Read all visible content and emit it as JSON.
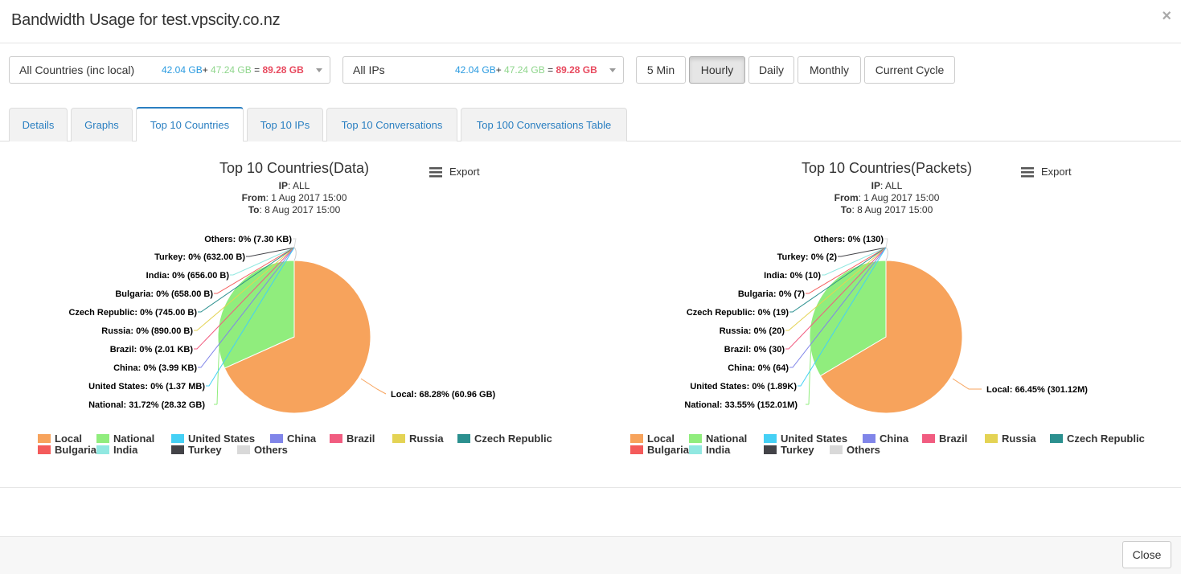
{
  "window": {
    "title": "Bandwidth Usage for test.vpscity.co.nz",
    "close_icon": "×"
  },
  "toolbar": {
    "country_select": {
      "label": "All Countries (inc local)",
      "a": "42.04 GB",
      "b": "47.24 GB",
      "total": "89.28 GB"
    },
    "ip_select": {
      "label": "All IPs",
      "a": "42.04 GB",
      "b": "47.24 GB",
      "total": "89.28 GB"
    },
    "ranges": [
      "5 Min",
      "Hourly",
      "Daily",
      "Monthly",
      "Current Cycle"
    ],
    "active_range": "Hourly"
  },
  "tabs": [
    "Details",
    "Graphs",
    "Top 10 Countries",
    "Top 10 IPs",
    "Top 10 Conversations",
    "Top 100 Conversations Table"
  ],
  "active_tab": "Top 10 Countries",
  "export_label": "Export",
  "footer": {
    "close_label": "Close"
  },
  "colors": {
    "Local": "#f7a35c",
    "National": "#90ed7d",
    "United States": "#45d0f5",
    "China": "#8085e9",
    "Brazil": "#f15c80",
    "Russia": "#e4d354",
    "Czech Republic": "#2b908f",
    "Bulgaria": "#f45b5b",
    "India": "#91e8e1",
    "Turkey": "#434348",
    "Others": "#d9d9d9"
  },
  "chart_data": [
    {
      "type": "pie",
      "title": "Top 10 Countries(Data)",
      "subtitle": {
        "ip_label": "IP",
        "ip": "ALL",
        "from_label": "From",
        "from": "1 Aug 2017 15:00",
        "to_label": "To",
        "to": "8 Aug 2017 15:00"
      },
      "slices": [
        {
          "name": "Local",
          "percent": 68.28,
          "label": "Local: 68.28% (60.96 GB)"
        },
        {
          "name": "National",
          "percent": 31.72,
          "label": "National: 31.72% (28.32 GB)"
        },
        {
          "name": "United States",
          "percent": 0,
          "label": "United States: 0% (1.37 MB)"
        },
        {
          "name": "China",
          "percent": 0,
          "label": "China: 0% (3.99 KB)"
        },
        {
          "name": "Brazil",
          "percent": 0,
          "label": "Brazil: 0% (2.01 KB)"
        },
        {
          "name": "Russia",
          "percent": 0,
          "label": "Russia: 0% (890.00 B)"
        },
        {
          "name": "Czech Republic",
          "percent": 0,
          "label": "Czech Republic: 0% (745.00 B)"
        },
        {
          "name": "Bulgaria",
          "percent": 0,
          "label": "Bulgaria: 0% (658.00 B)"
        },
        {
          "name": "India",
          "percent": 0,
          "label": "India: 0% (656.00 B)"
        },
        {
          "name": "Turkey",
          "percent": 0,
          "label": "Turkey: 0% (632.00 B)"
        },
        {
          "name": "Others",
          "percent": 0,
          "label": "Others: 0% (7.30 KB)"
        }
      ],
      "legend": "bottom"
    },
    {
      "type": "pie",
      "title": "Top 10 Countries(Packets)",
      "subtitle": {
        "ip_label": "IP",
        "ip": "ALL",
        "from_label": "From",
        "from": "1 Aug 2017 15:00",
        "to_label": "To",
        "to": "8 Aug 2017 15:00"
      },
      "slices": [
        {
          "name": "Local",
          "percent": 66.45,
          "label": "Local: 66.45% (301.12M)"
        },
        {
          "name": "National",
          "percent": 33.55,
          "label": "National: 33.55% (152.01M)"
        },
        {
          "name": "United States",
          "percent": 0,
          "label": "United States: 0% (1.89K)"
        },
        {
          "name": "China",
          "percent": 0,
          "label": "China: 0% (64)"
        },
        {
          "name": "Brazil",
          "percent": 0,
          "label": "Brazil: 0% (30)"
        },
        {
          "name": "Russia",
          "percent": 0,
          "label": "Russia: 0% (20)"
        },
        {
          "name": "Czech Republic",
          "percent": 0,
          "label": "Czech Republic: 0% (19)"
        },
        {
          "name": "Bulgaria",
          "percent": 0,
          "label": "Bulgaria: 0% (7)"
        },
        {
          "name": "India",
          "percent": 0,
          "label": "India: 0% (10)"
        },
        {
          "name": "Turkey",
          "percent": 0,
          "label": "Turkey: 0% (2)"
        },
        {
          "name": "Others",
          "percent": 0,
          "label": "Others: 0% (130)"
        }
      ],
      "legend": "bottom"
    }
  ]
}
